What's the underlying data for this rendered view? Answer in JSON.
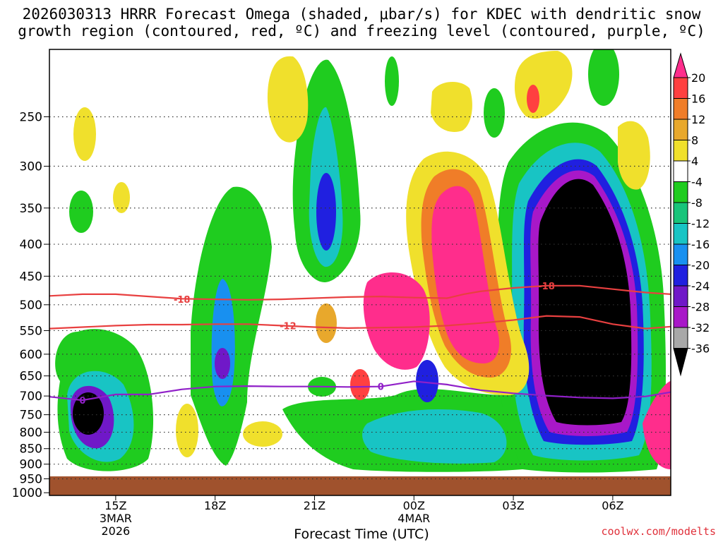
{
  "chart_data": {
    "type": "heatmap",
    "title_line1": "2026030313 HRRR Forecast Omega (shaded, μbar/s) for KDEC with dendritic snow",
    "title_line2": "growth region (contoured, red, ºC) and freezing level (contoured, purple, ºC)",
    "xlabel": "Forecast Time (UTC)",
    "ylabel": "",
    "x_range_hours": [
      13.0,
      31.75
    ],
    "y_range_hpa": [
      195,
      1010
    ],
    "x_ticks": [
      {
        "hour": 15,
        "label": "15Z",
        "sub1": "3MAR",
        "sub2": "2026"
      },
      {
        "hour": 18,
        "label": "18Z",
        "sub1": "",
        "sub2": ""
      },
      {
        "hour": 21,
        "label": "21Z",
        "sub1": "",
        "sub2": ""
      },
      {
        "hour": 24,
        "label": "00Z",
        "sub1": "4MAR",
        "sub2": ""
      },
      {
        "hour": 27,
        "label": "03Z",
        "sub1": "",
        "sub2": ""
      },
      {
        "hour": 30,
        "label": "06Z",
        "sub1": "",
        "sub2": ""
      }
    ],
    "y_ticks": [
      250,
      300,
      350,
      400,
      450,
      500,
      550,
      600,
      650,
      700,
      750,
      800,
      850,
      900,
      950,
      1000
    ],
    "colorbar": {
      "labels": [
        "20",
        "16",
        "12",
        "8",
        "4",
        "-4",
        "-8",
        "-12",
        "-16",
        "-20",
        "-24",
        "-28",
        "-32",
        "-36"
      ],
      "colors": [
        "#ff2d8c",
        "#ff4040",
        "#f07d28",
        "#e8a82c",
        "#f0e02c",
        "#ffffff",
        "#1fcc1f",
        "#18c47a",
        "#18c4c4",
        "#1890f0",
        "#2020e0",
        "#7018c8",
        "#a818c8",
        "#a8a8a8",
        "#000000"
      ]
    },
    "series": [
      {
        "name": "-18",
        "color": "#e84040",
        "points": [
          [
            13.0,
            484
          ],
          [
            14.0,
            481
          ],
          [
            15.0,
            481
          ],
          [
            16.0,
            485
          ],
          [
            17.0,
            489
          ],
          [
            18.0,
            490
          ],
          [
            19.0,
            491
          ],
          [
            20.0,
            490
          ],
          [
            21.0,
            488
          ],
          [
            22.0,
            486
          ],
          [
            23.0,
            485
          ],
          [
            24.0,
            487
          ],
          [
            25.0,
            488
          ],
          [
            25.5,
            481
          ],
          [
            26.0,
            476
          ],
          [
            27.0,
            470
          ],
          [
            28.0,
            466
          ],
          [
            29.0,
            466
          ],
          [
            30.0,
            472
          ],
          [
            31.0,
            478
          ],
          [
            31.75,
            481
          ]
        ]
      },
      {
        "name": "-12",
        "color": "#e84040",
        "points": [
          [
            13.0,
            546
          ],
          [
            14.0,
            543
          ],
          [
            15.0,
            540
          ],
          [
            16.0,
            538
          ],
          [
            17.0,
            538
          ],
          [
            18.0,
            537
          ],
          [
            19.0,
            537
          ],
          [
            20.0,
            540
          ],
          [
            21.0,
            543
          ],
          [
            22.0,
            545
          ],
          [
            23.0,
            544
          ],
          [
            24.0,
            543
          ],
          [
            25.0,
            540
          ],
          [
            26.0,
            535
          ],
          [
            27.0,
            529
          ],
          [
            28.0,
            521
          ],
          [
            29.0,
            523
          ],
          [
            30.0,
            537
          ],
          [
            31.0,
            546
          ],
          [
            31.75,
            542
          ]
        ]
      },
      {
        "name": "0",
        "color": "#9020c8",
        "points": [
          [
            13.0,
            702
          ],
          [
            14.0,
            711
          ],
          [
            15.0,
            696
          ],
          [
            16.0,
            696
          ],
          [
            17.0,
            683
          ],
          [
            18.0,
            676
          ],
          [
            19.0,
            675
          ],
          [
            20.0,
            676
          ],
          [
            21.0,
            676
          ],
          [
            22.0,
            677
          ],
          [
            23.0,
            676
          ],
          [
            24.0,
            663
          ],
          [
            25.0,
            671
          ],
          [
            26.0,
            685
          ],
          [
            27.0,
            693
          ],
          [
            28.0,
            699
          ],
          [
            29.0,
            704
          ],
          [
            30.0,
            706
          ],
          [
            31.0,
            701
          ],
          [
            31.75,
            690
          ]
        ]
      }
    ],
    "contour_labels": [
      {
        "text": "-18",
        "hour": 17.0,
        "hpa": 490
      },
      {
        "text": "-12",
        "hour": 20.2,
        "hpa": 540
      },
      {
        "text": "-18",
        "hour": 28.0,
        "hpa": 466
      },
      {
        "text": "0",
        "hour": 14.0,
        "hpa": 711
      },
      {
        "text": "0",
        "hour": 23.0,
        "hpa": 676
      }
    ]
  },
  "footer": {
    "credit": "coolwx.com/modelts"
  }
}
